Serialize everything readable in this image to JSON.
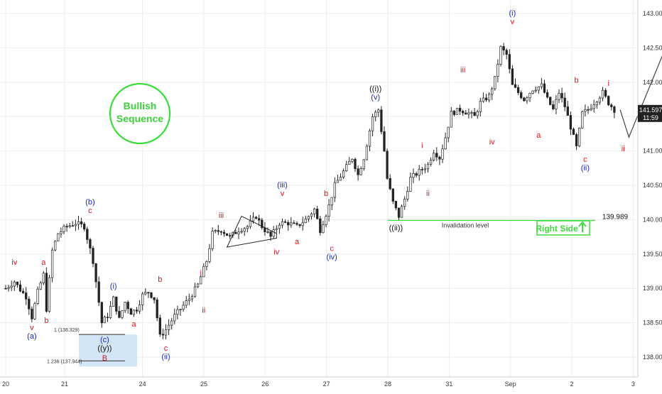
{
  "colors": {
    "candle": "#222222",
    "red_label": "#e0141e",
    "blue_label": "#1a2bb8",
    "black_label": "#111111",
    "green": "#3ddb3d",
    "grid": "#eeeeee",
    "price_tag_bg": "#222222",
    "fib_box": "#d4e6f5"
  },
  "bullish_badge": {
    "line1": "Bullish",
    "line2": "Sequence"
  },
  "right_side_badge": {
    "text": "Right Side",
    "icon": "up-arrow-icon"
  },
  "invalidation": {
    "label": "Invalidation level",
    "value_text": "139.989",
    "value": 139.989
  },
  "fib_labels": {
    "level_100": "1 (138.329)",
    "level_1236": "1.236 (137.944)",
    "value_100": 138.329,
    "value_1236": 137.944
  },
  "price_tag": {
    "price": "141.597",
    "time": "11:59"
  },
  "chart_data": {
    "type": "candlestick",
    "instrument_scale": "linear",
    "y_axis": {
      "ylim": [
        137.65,
        143.3
      ],
      "ticks": [
        "143.000",
        "142.500",
        "142.000",
        "141.500",
        "141.000",
        "140.500",
        "140.000",
        "139.500",
        "139.000",
        "138.500",
        "138.000"
      ],
      "tick_values": [
        143.0,
        142.5,
        142.0,
        141.5,
        141.0,
        140.5,
        140.0,
        139.5,
        139.0,
        138.5,
        138.0
      ]
    },
    "x_axis": {
      "ticks": [
        "20",
        "21",
        "24",
        "25",
        "26",
        "27",
        "28",
        "31",
        "Sep",
        "2",
        "3"
      ],
      "tick_index": [
        0,
        12.5,
        29,
        42,
        55,
        68,
        81,
        94,
        107,
        120,
        133
      ]
    },
    "grid": true,
    "path_anchors": [
      [
        0,
        139.0
      ],
      [
        3,
        139.1
      ],
      [
        5,
        138.98
      ],
      [
        7,
        138.88
      ],
      [
        9,
        138.58
      ],
      [
        11,
        138.95
      ],
      [
        13,
        139.2
      ],
      [
        14,
        138.7
      ],
      [
        16,
        139.55
      ],
      [
        18,
        139.8
      ],
      [
        21,
        139.9
      ],
      [
        24,
        139.95
      ],
      [
        27,
        139.9
      ],
      [
        30,
        139.4
      ],
      [
        33,
        138.5
      ],
      [
        35,
        138.6
      ],
      [
        37,
        138.85
      ],
      [
        39,
        138.55
      ],
      [
        41,
        138.8
      ],
      [
        43,
        138.65
      ],
      [
        45,
        138.7
      ],
      [
        47,
        138.9
      ],
      [
        49,
        138.95
      ],
      [
        51,
        138.85
      ],
      [
        53,
        138.3
      ],
      [
        55,
        138.4
      ],
      [
        58,
        138.6
      ],
      [
        61,
        138.75
      ],
      [
        63,
        138.85
      ],
      [
        66,
        139.05
      ],
      [
        69,
        139.4
      ],
      [
        71,
        139.8
      ],
      [
        74,
        139.85
      ],
      [
        77,
        139.75
      ],
      [
        80,
        139.85
      ],
      [
        83,
        139.9
      ],
      [
        86,
        140.05
      ],
      [
        88,
        139.9
      ],
      [
        91,
        139.75
      ],
      [
        94,
        139.95
      ],
      [
        97,
        139.95
      ],
      [
        100,
        139.9
      ],
      [
        103,
        140.0
      ],
      [
        106,
        140.15
      ],
      [
        108,
        139.85
      ],
      [
        111,
        140.2
      ],
      [
        113,
        140.5
      ],
      [
        116,
        140.7
      ],
      [
        119,
        140.9
      ],
      [
        121,
        140.65
      ],
      [
        123,
        140.9
      ],
      [
        126,
        141.5
      ],
      [
        128,
        141.6
      ],
      [
        130,
        141.0
      ],
      [
        131,
        140.6
      ],
      [
        133,
        140.25
      ],
      [
        135,
        140.05
      ],
      [
        137,
        140.3
      ],
      [
        139,
        140.6
      ],
      [
        142,
        140.7
      ],
      [
        145,
        140.8
      ],
      [
        147,
        141.0
      ],
      [
        149,
        140.9
      ],
      [
        151,
        141.2
      ],
      [
        153,
        141.55
      ],
      [
        156,
        141.6
      ],
      [
        159,
        141.55
      ],
      [
        161,
        141.5
      ],
      [
        163,
        141.7
      ],
      [
        166,
        141.8
      ],
      [
        168,
        142.05
      ],
      [
        170,
        142.5
      ],
      [
        172,
        142.4
      ],
      [
        174,
        141.95
      ],
      [
        176,
        141.85
      ],
      [
        178,
        141.75
      ],
      [
        181,
        141.9
      ],
      [
        184,
        141.95
      ],
      [
        186,
        141.75
      ],
      [
        188,
        141.6
      ],
      [
        190,
        141.85
      ],
      [
        192,
        141.65
      ],
      [
        194,
        141.35
      ],
      [
        196,
        141.05
      ],
      [
        198,
        141.55
      ],
      [
        200,
        141.6
      ],
      [
        203,
        141.75
      ],
      [
        205,
        141.85
      ],
      [
        207,
        141.7
      ],
      [
        209,
        141.6
      ]
    ],
    "projection_path": [
      [
        211,
        141.6
      ],
      [
        214,
        141.2
      ],
      [
        229,
        142.75
      ]
    ],
    "triangle_pattern": [
      [
        81,
        140.05
      ],
      [
        93,
        139.8
      ],
      [
        93,
        139.73
      ],
      [
        76,
        139.6
      ]
    ],
    "wave_labels": [
      {
        "text": "iv",
        "i": 3,
        "v": 139.2,
        "color": "red",
        "off": -1
      },
      {
        "text": "v",
        "i": 9,
        "v": 138.6,
        "color": "red",
        "off": 1
      },
      {
        "text": "(a)",
        "i": 9,
        "v": 138.6,
        "color": "blue",
        "off": 2
      },
      {
        "text": "a",
        "i": 13,
        "v": 139.2,
        "color": "red",
        "off": -1
      },
      {
        "text": "b",
        "i": 14,
        "v": 138.7,
        "color": "red",
        "off": 1
      },
      {
        "text": "(b)",
        "i": 29,
        "v": 139.95,
        "color": "blue",
        "off": -2
      },
      {
        "text": "c",
        "i": 29,
        "v": 139.95,
        "color": "red",
        "off": -1
      },
      {
        "text": "(i)",
        "i": 37,
        "v": 138.85,
        "color": "blue",
        "off": -1
      },
      {
        "text": "(c)",
        "i": 34,
        "v": 138.5,
        "color": "blue",
        "off": 1.6
      },
      {
        "text": "((y))",
        "i": 34,
        "v": 138.5,
        "color": "black",
        "off": 2.6
      },
      {
        "text": "B",
        "i": 34,
        "v": 138.5,
        "color": "red",
        "off": 3.8
      },
      {
        "text": "b",
        "i": 53,
        "v": 138.95,
        "color": "red",
        "off": -1
      },
      {
        "text": "a",
        "i": 44,
        "v": 138.65,
        "color": "red",
        "off": 1
      },
      {
        "text": "c",
        "i": 55,
        "v": 138.3,
        "color": "red",
        "off": 1
      },
      {
        "text": "(ii)",
        "i": 55,
        "v": 138.3,
        "color": "blue",
        "off": 2
      },
      {
        "text": "i",
        "i": 67,
        "v": 139.05,
        "color": "red",
        "off": -1
      },
      {
        "text": "ii",
        "i": 68,
        "v": 138.85,
        "color": "red",
        "off": 1
      },
      {
        "text": "iii",
        "i": 74,
        "v": 139.88,
        "color": "red",
        "off": -1
      },
      {
        "text": "(iii)",
        "i": 95,
        "v": 140.2,
        "color": "blue",
        "off": -2
      },
      {
        "text": "v",
        "i": 95,
        "v": 140.2,
        "color": "red",
        "off": -1
      },
      {
        "text": "iv",
        "i": 93,
        "v": 139.7,
        "color": "red",
        "off": 1
      },
      {
        "text": "a",
        "i": 100,
        "v": 139.85,
        "color": "red",
        "off": 1
      },
      {
        "text": "b",
        "i": 110,
        "v": 140.2,
        "color": "red",
        "off": -1
      },
      {
        "text": "c",
        "i": 112,
        "v": 139.75,
        "color": "red",
        "off": 1
      },
      {
        "text": "(iv)",
        "i": 112,
        "v": 139.75,
        "color": "blue",
        "off": 2
      },
      {
        "text": "((i))",
        "i": 127,
        "v": 141.6,
        "color": "black",
        "off": -2
      },
      {
        "text": "(v)",
        "i": 127,
        "v": 141.6,
        "color": "blue",
        "off": -1
      },
      {
        "text": "((ii))",
        "i": 134,
        "v": 140.05,
        "color": "black",
        "off": 1
      },
      {
        "text": "i",
        "i": 143,
        "v": 140.9,
        "color": "red",
        "off": -1
      },
      {
        "text": "ii",
        "i": 145,
        "v": 140.55,
        "color": "red",
        "off": 1
      },
      {
        "text": "iii",
        "i": 157,
        "v": 142.0,
        "color": "red",
        "off": -1
      },
      {
        "text": "iv",
        "i": 167,
        "v": 141.3,
        "color": "red",
        "off": 1
      },
      {
        "text": "(i)",
        "i": 174,
        "v": 142.7,
        "color": "blue",
        "off": -2
      },
      {
        "text": "v",
        "i": 174,
        "v": 142.7,
        "color": "red",
        "off": -1
      },
      {
        "text": "a",
        "i": 183,
        "v": 141.4,
        "color": "red",
        "off": 1
      },
      {
        "text": "b",
        "i": 196,
        "v": 141.85,
        "color": "red",
        "off": -1
      },
      {
        "text": "c",
        "i": 199,
        "v": 141.05,
        "color": "red",
        "off": 1
      },
      {
        "text": "(ii)",
        "i": 199,
        "v": 141.05,
        "color": "blue",
        "off": 2
      },
      {
        "text": "i",
        "i": 207,
        "v": 141.8,
        "color": "red",
        "off": -1
      },
      {
        "text": "ii",
        "i": 212,
        "v": 141.2,
        "color": "red",
        "off": 1
      }
    ]
  }
}
